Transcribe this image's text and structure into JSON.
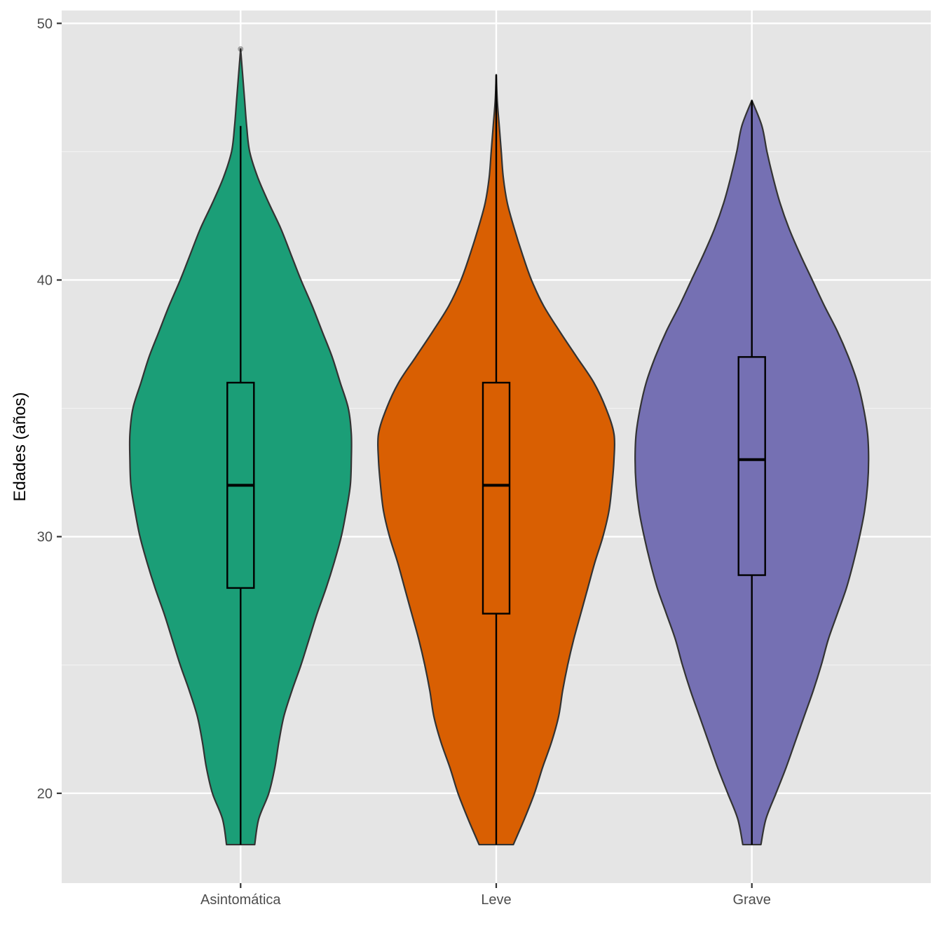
{
  "chart_data": {
    "type": "violin",
    "ylabel": "Edades (años)",
    "xlabel": "",
    "ylim": [
      16.5,
      50.5
    ],
    "y_ticks": [
      20,
      30,
      40,
      50
    ],
    "y_minor_ticks": [
      25,
      35,
      45
    ],
    "grid": true,
    "categories": [
      "Asintomática",
      "Leve",
      "Grave"
    ],
    "series": [
      {
        "category": "Asintomática",
        "color": "#1b9e77",
        "box": {
          "lower_whisker": 18,
          "q1": 28,
          "median": 32,
          "q3": 36,
          "upper_whisker": 46
        },
        "outliers": [
          49
        ],
        "range": [
          18,
          49
        ],
        "density": [
          [
            18,
            0.14
          ],
          [
            19,
            0.18
          ],
          [
            20,
            0.28
          ],
          [
            21,
            0.34
          ],
          [
            22,
            0.38
          ],
          [
            23,
            0.43
          ],
          [
            24,
            0.51
          ],
          [
            25,
            0.6
          ],
          [
            26,
            0.68
          ],
          [
            27,
            0.76
          ],
          [
            28,
            0.85
          ],
          [
            29,
            0.93
          ],
          [
            30,
            1.0
          ],
          [
            31,
            1.05
          ],
          [
            32,
            1.09
          ],
          [
            33,
            1.1
          ],
          [
            34,
            1.1
          ],
          [
            35,
            1.07
          ],
          [
            36,
            0.99
          ],
          [
            37,
            0.91
          ],
          [
            38,
            0.81
          ],
          [
            39,
            0.71
          ],
          [
            40,
            0.6
          ],
          [
            41,
            0.5
          ],
          [
            42,
            0.4
          ],
          [
            43,
            0.28
          ],
          [
            44,
            0.17
          ],
          [
            45,
            0.09
          ],
          [
            46,
            0.06
          ],
          [
            47,
            0.04
          ],
          [
            48,
            0.02
          ],
          [
            49,
            0.0
          ]
        ]
      },
      {
        "category": "Leve",
        "color": "#d95f02",
        "box": {
          "lower_whisker": 18,
          "q1": 27,
          "median": 32,
          "q3": 36,
          "upper_whisker": 48
        },
        "outliers": [],
        "range": [
          18,
          48
        ],
        "density": [
          [
            18,
            0.17
          ],
          [
            19,
            0.28
          ],
          [
            20,
            0.38
          ],
          [
            21,
            0.46
          ],
          [
            22,
            0.55
          ],
          [
            23,
            0.62
          ],
          [
            24,
            0.66
          ],
          [
            25,
            0.71
          ],
          [
            26,
            0.77
          ],
          [
            27,
            0.84
          ],
          [
            28,
            0.91
          ],
          [
            29,
            0.98
          ],
          [
            30,
            1.06
          ],
          [
            31,
            1.12
          ],
          [
            32,
            1.15
          ],
          [
            33,
            1.17
          ],
          [
            34,
            1.17
          ],
          [
            35,
            1.09
          ],
          [
            36,
            0.97
          ],
          [
            37,
            0.8
          ],
          [
            38,
            0.63
          ],
          [
            39,
            0.47
          ],
          [
            40,
            0.35
          ],
          [
            41,
            0.26
          ],
          [
            42,
            0.18
          ],
          [
            43,
            0.11
          ],
          [
            44,
            0.07
          ],
          [
            45,
            0.05
          ],
          [
            46,
            0.03
          ],
          [
            47,
            0.01
          ],
          [
            48,
            0.0
          ]
        ]
      },
      {
        "category": "Grave",
        "color": "#7570b3",
        "box": {
          "lower_whisker": 18,
          "q1": 28.5,
          "median": 33,
          "q3": 37,
          "upper_whisker": 47
        },
        "outliers": [],
        "range": [
          18,
          47
        ],
        "density": [
          [
            18,
            0.09
          ],
          [
            19,
            0.14
          ],
          [
            20,
            0.24
          ],
          [
            21,
            0.34
          ],
          [
            22,
            0.43
          ],
          [
            23,
            0.52
          ],
          [
            24,
            0.61
          ],
          [
            25,
            0.69
          ],
          [
            26,
            0.76
          ],
          [
            27,
            0.85
          ],
          [
            28,
            0.94
          ],
          [
            29,
            1.01
          ],
          [
            30,
            1.07
          ],
          [
            31,
            1.12
          ],
          [
            32,
            1.15
          ],
          [
            33,
            1.16
          ],
          [
            34,
            1.15
          ],
          [
            35,
            1.11
          ],
          [
            36,
            1.05
          ],
          [
            37,
            0.96
          ],
          [
            38,
            0.85
          ],
          [
            39,
            0.72
          ],
          [
            40,
            0.6
          ],
          [
            41,
            0.48
          ],
          [
            42,
            0.37
          ],
          [
            43,
            0.28
          ],
          [
            44,
            0.21
          ],
          [
            45,
            0.15
          ],
          [
            46,
            0.1
          ],
          [
            47,
            0.0
          ]
        ]
      }
    ]
  }
}
